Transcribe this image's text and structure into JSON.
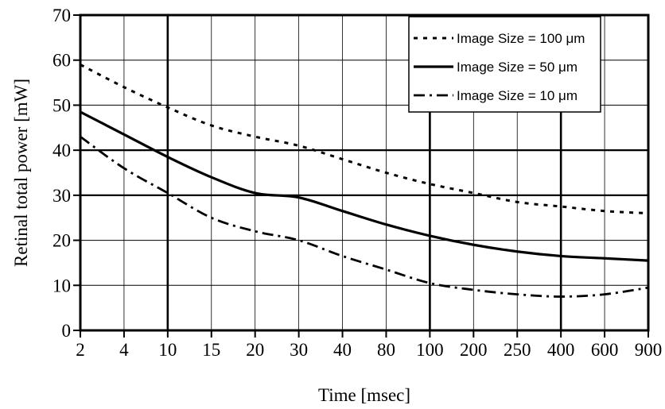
{
  "chart_data": {
    "type": "line",
    "title": "",
    "xlabel": "Time [msec]",
    "ylabel": "Retinal total power [mW]",
    "categories": [
      "2",
      "4",
      "10",
      "15",
      "20",
      "30",
      "40",
      "80",
      "100",
      "200",
      "250",
      "400",
      "600",
      "900"
    ],
    "ylim": [
      0,
      70
    ],
    "yticks": [
      0,
      10,
      20,
      30,
      40,
      50,
      60,
      70
    ],
    "grid": true,
    "legend_position": "top-right",
    "series": [
      {
        "name": "Image Size = 100 μm",
        "style": "dotted",
        "values": [
          59,
          54,
          49.5,
          45.5,
          43,
          41,
          38,
          35,
          32.5,
          30.5,
          28.5,
          27.5,
          26.5,
          26
        ]
      },
      {
        "name": "Image Size = 50 μm",
        "style": "solid",
        "values": [
          48.5,
          43.5,
          38.5,
          34,
          30.5,
          29.5,
          26.5,
          23.5,
          21,
          19,
          17.5,
          16.5,
          16,
          15.5
        ]
      },
      {
        "name": "Image Size = 10 μm",
        "style": "dash-dot",
        "values": [
          43,
          36,
          30.5,
          25,
          22,
          20,
          16.5,
          13.5,
          10.5,
          9,
          8,
          7.5,
          8,
          9.5
        ]
      }
    ]
  }
}
